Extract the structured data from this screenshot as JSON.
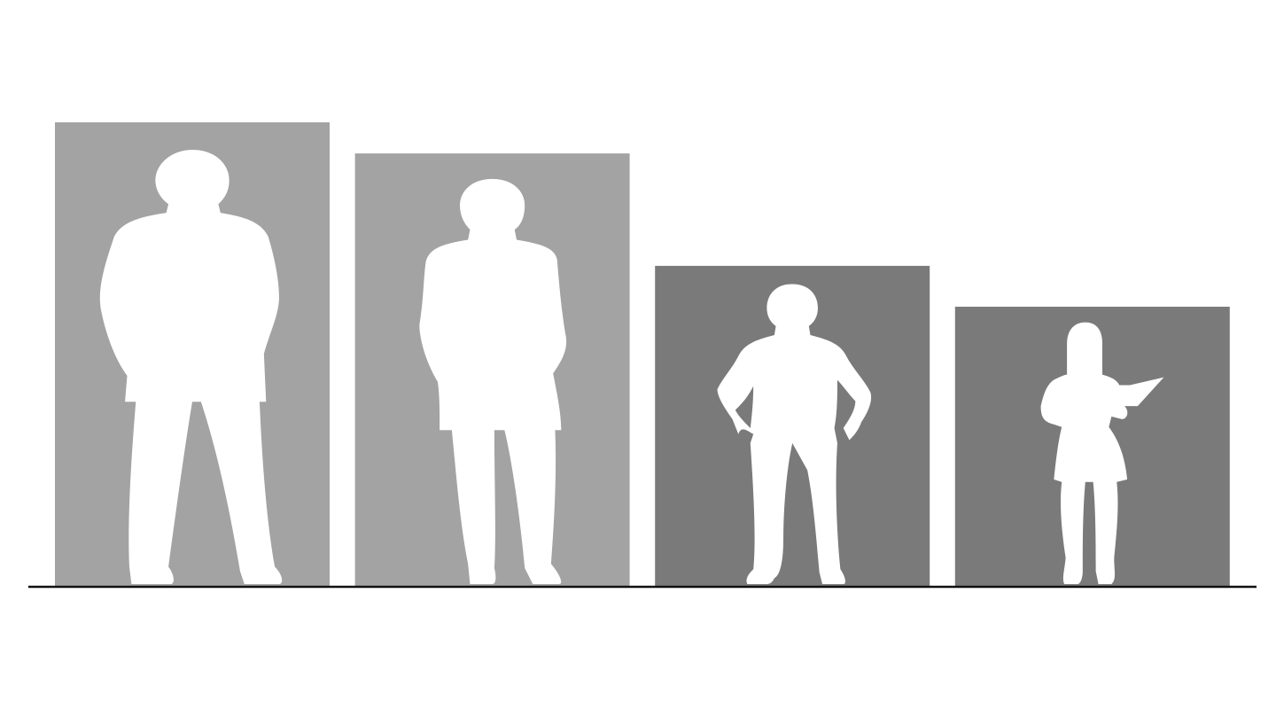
{
  "chart_data": {
    "type": "bar",
    "title": "",
    "xlabel": "",
    "ylabel": "",
    "categories": [
      "",
      "",
      "",
      ""
    ],
    "values": [
      100,
      93.3,
      69.1,
      60.3
    ],
    "ylim": [
      0,
      100
    ],
    "grid": false,
    "legend": "none",
    "bar_colors": [
      "#a3a3a3",
      "#a3a3a3",
      "#7a7a7a",
      "#7a7a7a"
    ],
    "figure_color": "#ffffff",
    "baseline_color": "#111111",
    "figures": [
      "man-hands-in-pockets-icon",
      "man-standing-icon",
      "boy-hands-on-hips-icon",
      "girl-holding-clipboard-icon"
    ]
  }
}
